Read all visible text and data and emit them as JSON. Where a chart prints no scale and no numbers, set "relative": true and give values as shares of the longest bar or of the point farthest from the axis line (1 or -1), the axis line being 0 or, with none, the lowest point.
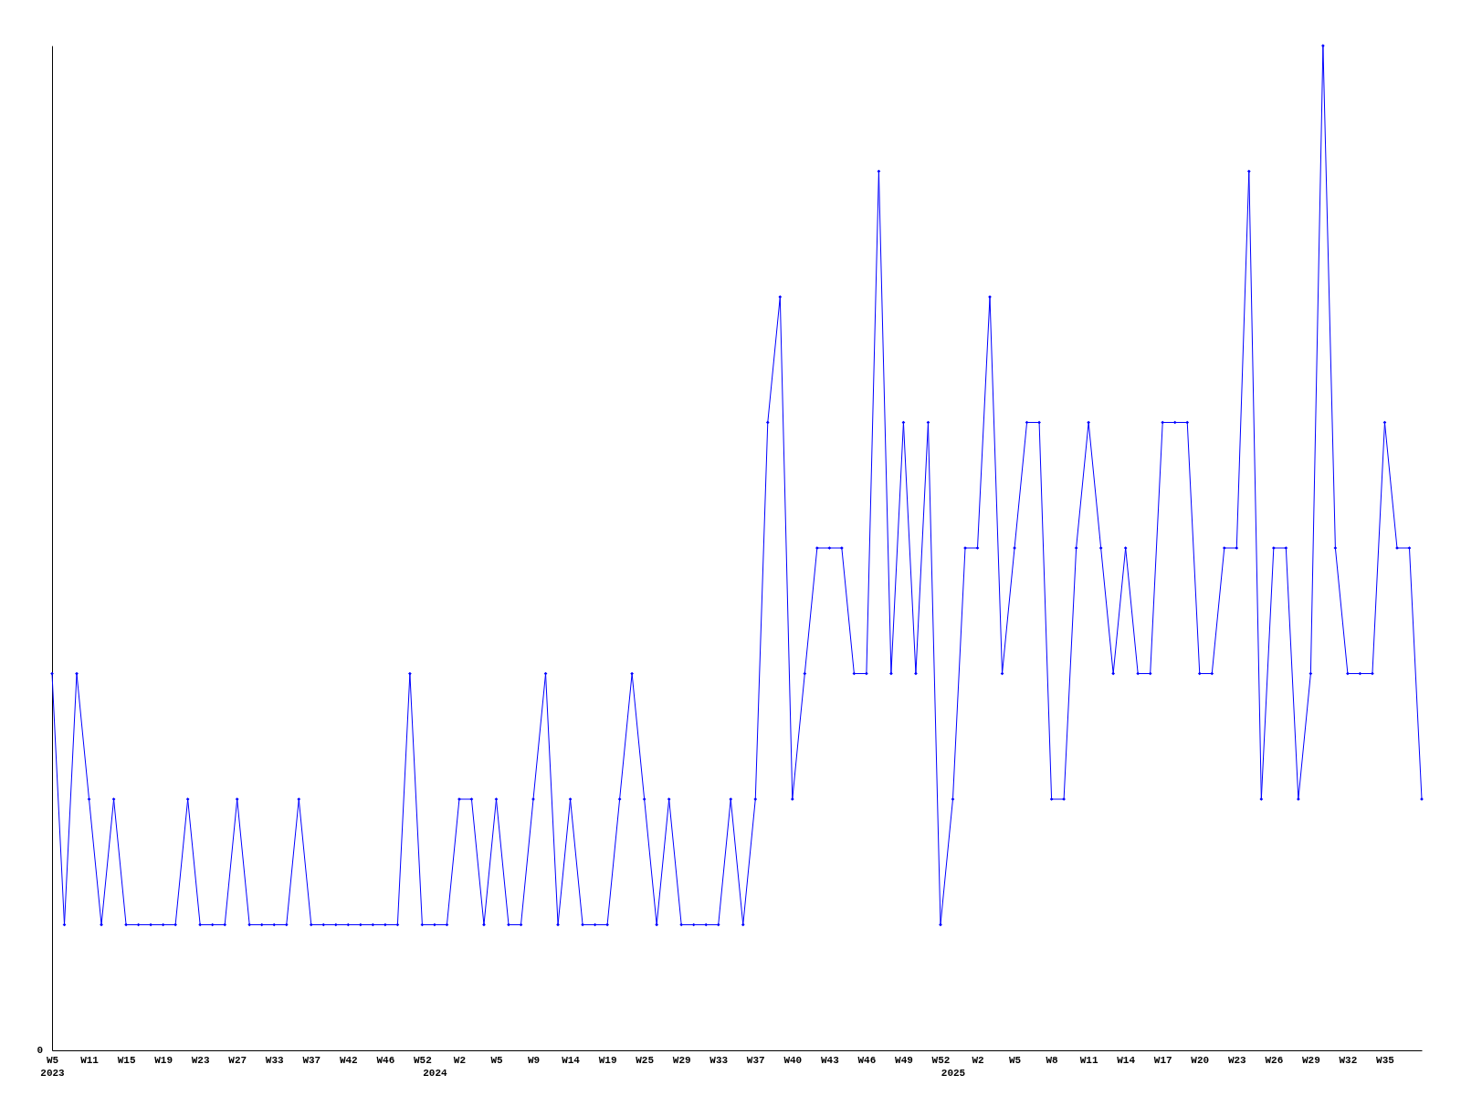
{
  "chart_data": {
    "type": "line",
    "relative": true,
    "marker": "diamond",
    "line_style": "solid",
    "annotations": [
      "0"
    ],
    "categories": [
      "W5\n2023",
      null,
      null,
      "W11",
      null,
      null,
      "W15",
      null,
      null,
      "W19",
      null,
      null,
      "W23",
      null,
      null,
      "W27",
      null,
      null,
      "W33",
      null,
      null,
      "W37",
      null,
      null,
      "W42",
      null,
      null,
      "W46",
      null,
      null,
      "W52",
      "\n2024",
      null,
      "W2",
      null,
      null,
      "W5",
      null,
      null,
      "W9",
      null,
      null,
      "W14",
      null,
      null,
      "W19",
      null,
      null,
      "W25",
      null,
      null,
      "W29",
      null,
      null,
      "W33",
      null,
      null,
      "W37",
      null,
      null,
      "W40",
      null,
      null,
      "W43",
      null,
      null,
      "W46",
      null,
      null,
      "W49",
      null,
      null,
      "W52",
      "\n2025",
      null,
      "W2",
      null,
      null,
      "W5",
      null,
      null,
      "W8",
      null,
      null,
      "W11",
      null,
      null,
      "W14",
      null,
      null,
      "W17",
      null,
      null,
      "W20",
      null,
      null,
      "W23",
      null,
      null,
      "W26",
      null,
      null,
      "W29",
      null,
      null,
      "W32",
      null,
      null,
      "W35",
      null,
      null,
      null
    ],
    "series": [
      {
        "color": "#0000ff",
        "values": [
          0.375,
          0.125,
          0.375,
          0.25,
          0.125,
          0.25,
          0.125,
          0.125,
          0.125,
          0.125,
          0.125,
          0.25,
          0.125,
          0.125,
          0.125,
          0.25,
          0.125,
          0.125,
          0.125,
          0.125,
          0.25,
          0.125,
          0.125,
          0.125,
          0.125,
          0.125,
          0.125,
          0.125,
          0.125,
          0.375,
          0.125,
          0.125,
          0.125,
          0.25,
          0.25,
          0.125,
          0.25,
          0.125,
          0.125,
          0.25,
          0.375,
          0.125,
          0.25,
          0.125,
          0.125,
          0.125,
          0.25,
          0.375,
          0.25,
          0.125,
          0.25,
          0.125,
          0.125,
          0.125,
          0.125,
          0.25,
          0.125,
          0.25,
          0.625,
          0.75,
          0.25,
          0.375,
          0.5,
          0.5,
          0.5,
          0.375,
          0.375,
          0.875,
          0.375,
          0.625,
          0.375,
          0.625,
          0.125,
          0.25,
          0.5,
          0.5,
          0.75,
          0.375,
          0.5,
          0.625,
          0.625,
          0.25,
          0.25,
          0.5,
          0.625,
          0.5,
          0.375,
          0.5,
          0.375,
          0.375,
          0.625,
          0.625,
          0.625,
          0.375,
          0.375,
          0.5,
          0.5,
          0.875,
          0.25,
          0.5,
          0.5,
          0.25,
          0.375,
          1,
          0.5,
          0.375,
          0.375,
          0.375,
          0.625,
          0.5,
          0.5,
          0.25
        ]
      }
    ]
  }
}
